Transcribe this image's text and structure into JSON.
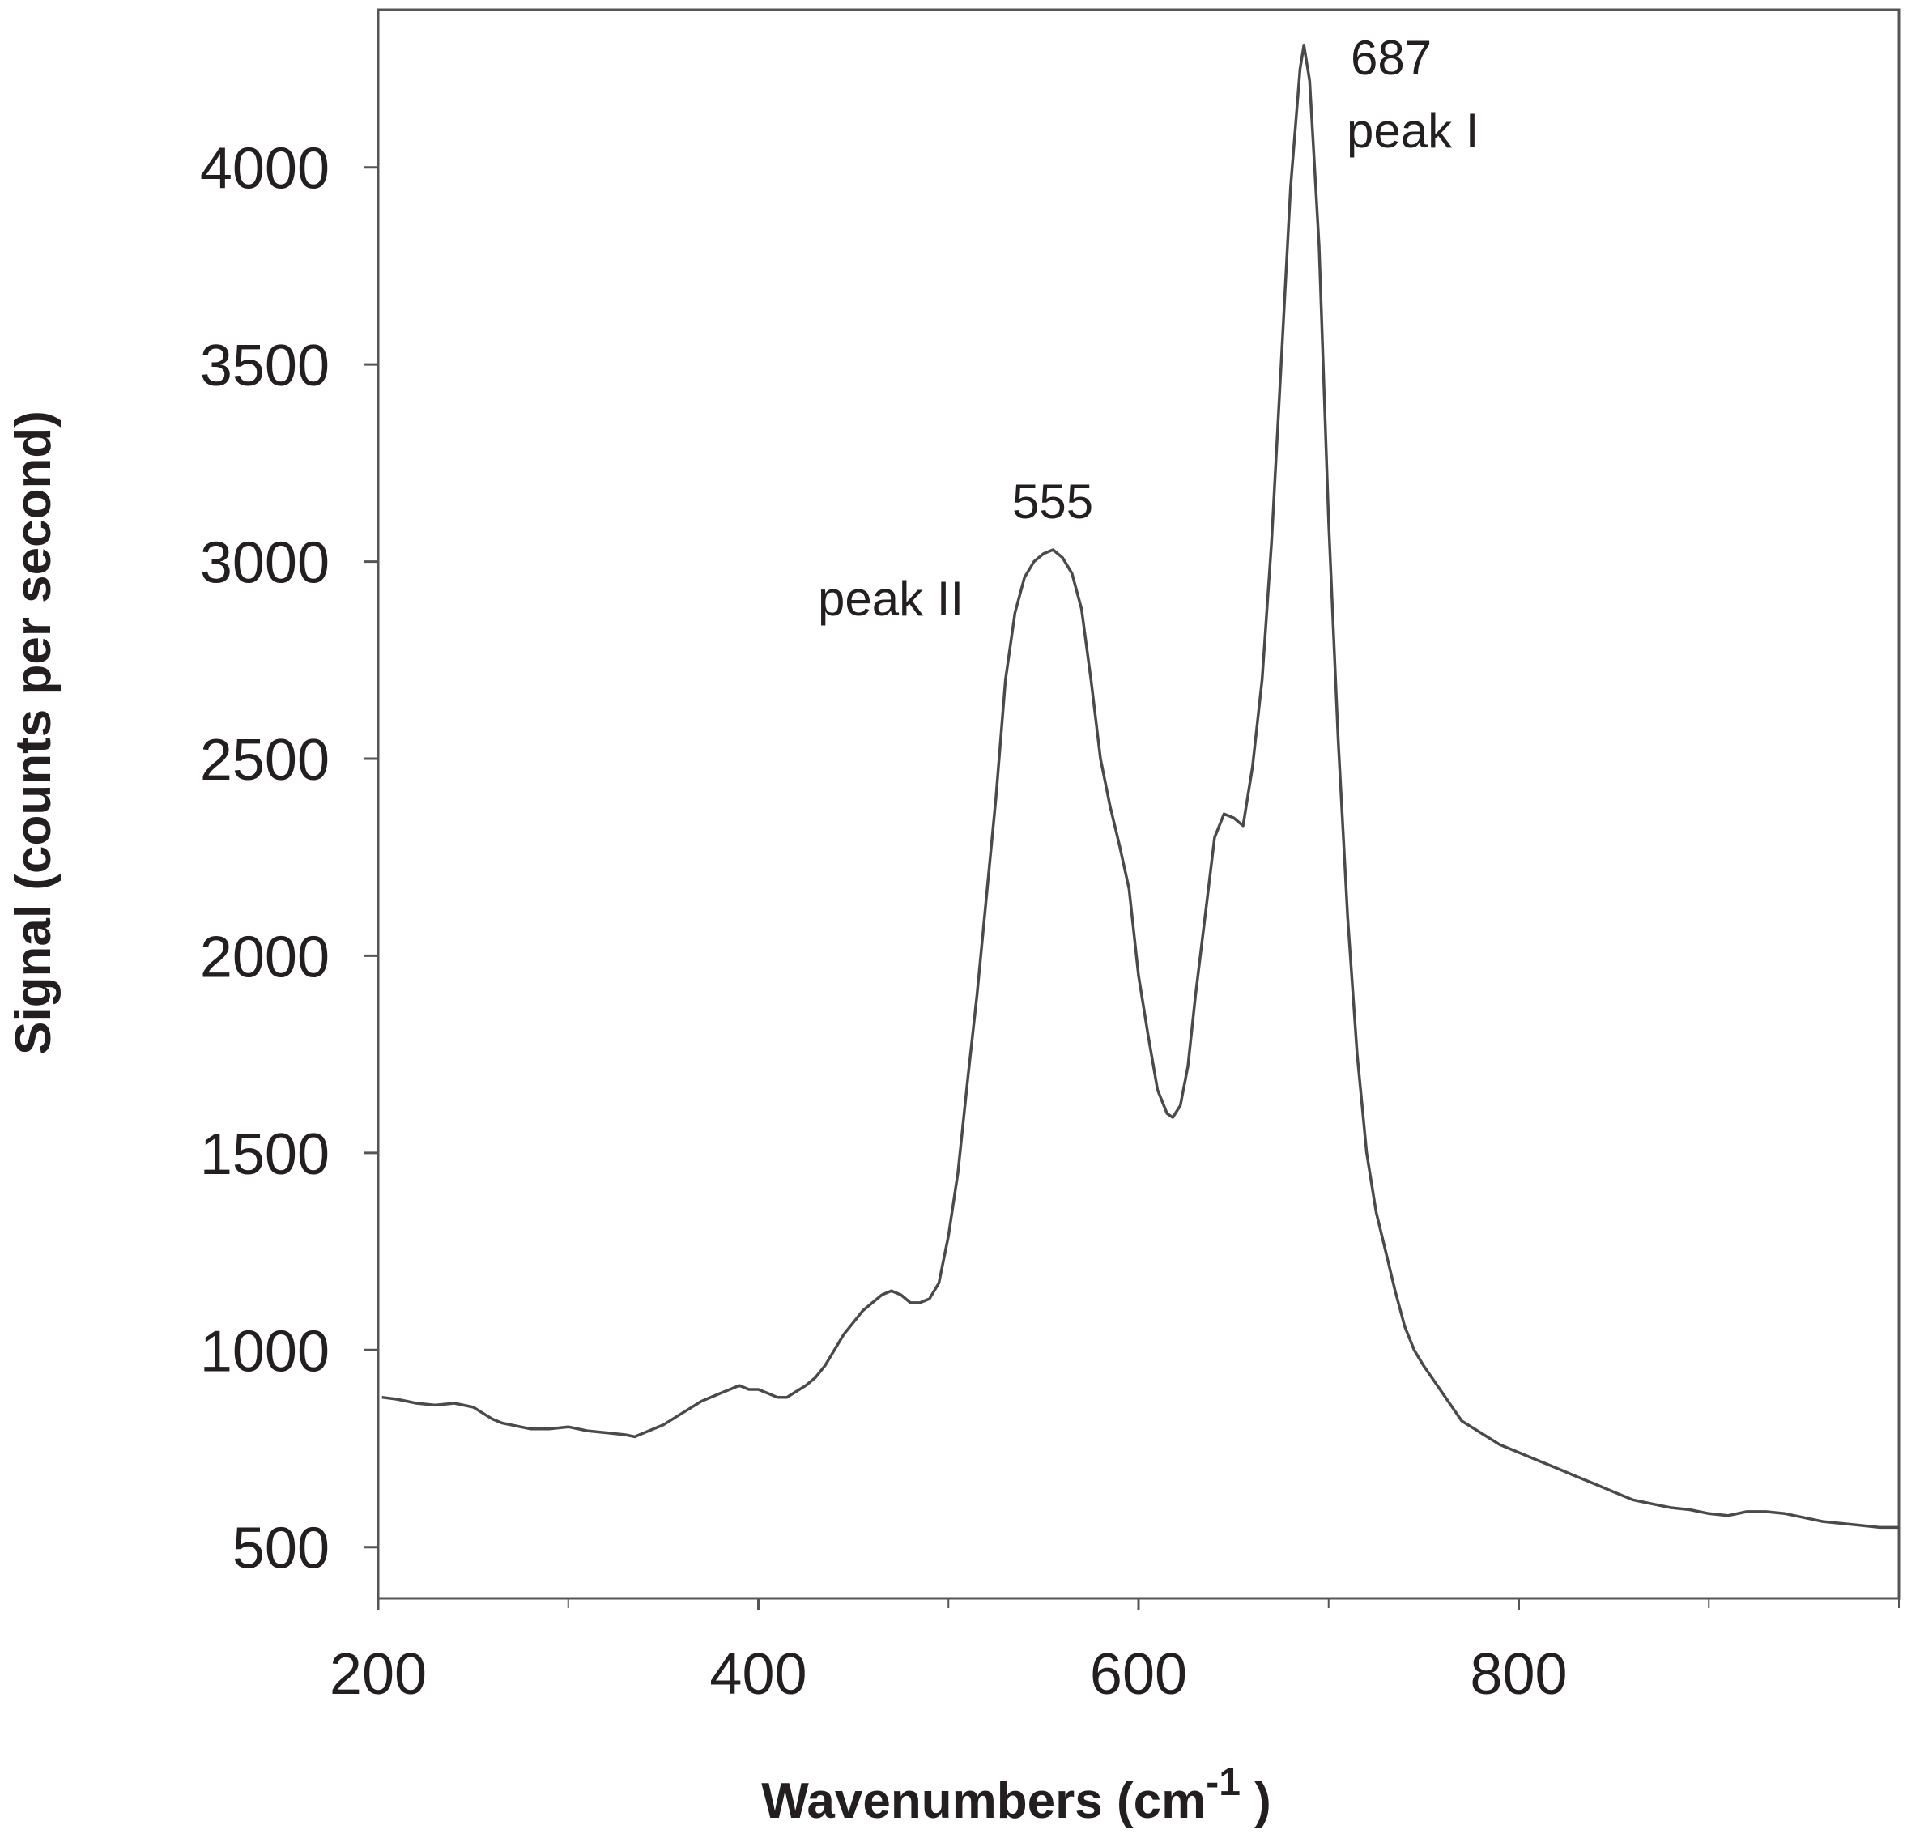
{
  "chart_data": {
    "type": "line",
    "title": "",
    "xlabel": "Wavenumbers (cm",
    "xlabel_superscript": "-1",
    "xlabel_close": " )",
    "ylabel": "Signal  (counts per second)",
    "xlim": [
      200,
      1000
    ],
    "ylim": [
      370,
      4400
    ],
    "x_ticks": [
      200,
      400,
      600,
      800
    ],
    "x_minor_ticks": [
      300,
      500,
      700,
      900,
      1000
    ],
    "y_ticks": [
      500,
      1000,
      1500,
      2000,
      2500,
      3000,
      3500,
      4000
    ],
    "x_tick_labels": [
      "200",
      "400",
      "600",
      "800"
    ],
    "y_tick_labels": [
      "500",
      "1000",
      "1500",
      "2000",
      "2500",
      "3000",
      "3500",
      "4000"
    ],
    "grid": false,
    "line_color": "#4a4a4a",
    "annotations": [
      {
        "id": "peak-i-value",
        "text": "687",
        "x": 687
      },
      {
        "id": "peak-i-label",
        "text": "peak I",
        "x": 687
      },
      {
        "id": "peak-ii-value",
        "text": "555",
        "x": 555
      },
      {
        "id": "peak-ii-label",
        "text": "peak II",
        "x": 555
      }
    ],
    "series": [
      {
        "x": [
          202,
          210,
          220,
          230,
          240,
          250,
          255,
          260,
          265,
          270,
          280,
          290,
          300,
          310,
          320,
          330,
          335,
          340,
          350,
          360,
          370,
          380,
          385,
          390,
          395,
          400,
          405,
          410,
          415,
          420,
          425,
          430,
          435,
          440,
          445,
          450,
          455,
          460,
          465,
          470,
          475,
          480,
          485,
          490,
          495,
          500,
          505,
          510,
          515,
          520,
          525,
          530,
          535,
          540,
          545,
          550,
          555,
          560,
          565,
          570,
          575,
          580,
          585,
          590,
          595,
          600,
          605,
          610,
          615,
          618,
          622,
          626,
          630,
          635,
          640,
          645,
          650,
          655,
          660,
          665,
          670,
          675,
          680,
          685,
          687,
          690,
          695,
          700,
          705,
          710,
          715,
          720,
          725,
          730,
          735,
          740,
          745,
          750,
          760,
          770,
          780,
          790,
          800,
          810,
          820,
          830,
          840,
          850,
          860,
          870,
          880,
          890,
          900,
          910,
          920,
          930,
          940,
          950,
          960,
          970,
          980,
          990,
          1000
        ],
        "y": [
          880,
          875,
          865,
          860,
          865,
          855,
          840,
          825,
          815,
          810,
          800,
          800,
          805,
          795,
          790,
          785,
          780,
          790,
          810,
          840,
          870,
          890,
          900,
          910,
          900,
          900,
          890,
          880,
          880,
          895,
          910,
          930,
          960,
          1000,
          1040,
          1070,
          1100,
          1120,
          1140,
          1150,
          1140,
          1120,
          1120,
          1130,
          1170,
          1290,
          1450,
          1680,
          1900,
          2150,
          2400,
          2700,
          2870,
          2960,
          3000,
          3020,
          3030,
          3010,
          2970,
          2880,
          2700,
          2500,
          2380,
          2280,
          2170,
          1950,
          1800,
          1660,
          1600,
          1590,
          1620,
          1720,
          1900,
          2100,
          2300,
          2360,
          2350,
          2330,
          2480,
          2700,
          3050,
          3500,
          3950,
          4250,
          4310,
          4220,
          3800,
          3100,
          2550,
          2100,
          1750,
          1500,
          1350,
          1250,
          1150,
          1060,
          1000,
          960,
          890,
          820,
          790,
          760,
          740,
          720,
          700,
          680,
          660,
          640,
          620,
          610,
          600,
          595,
          585,
          580,
          590,
          590,
          585,
          575,
          565,
          560,
          555,
          550,
          550
        ]
      }
    ]
  }
}
